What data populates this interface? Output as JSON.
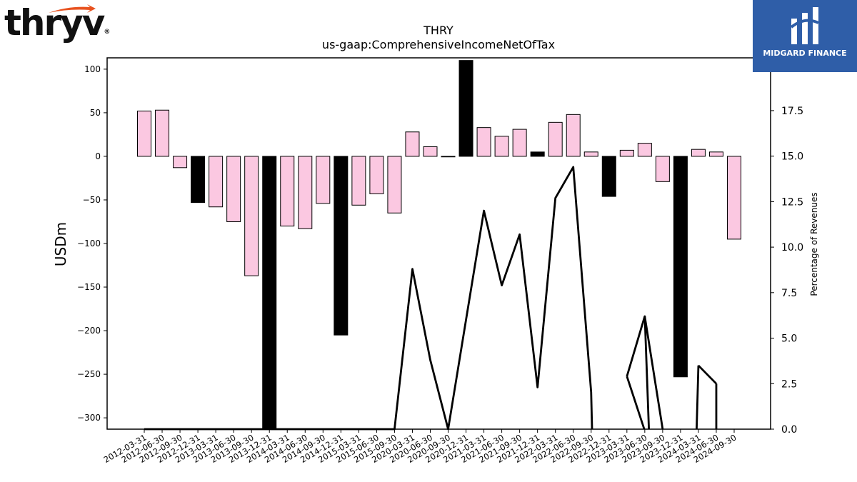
{
  "brand": {
    "left_logo_text": "thryv",
    "left_logo_mark": "®",
    "left_logo_accent_color": "#e8521f",
    "right_logo_text": "MIDGARD FINANCE",
    "right_logo_bg": "#2f5ea8"
  },
  "chart_data": {
    "type": "bar",
    "title": "THRY",
    "subtitle": "us-gaap:ComprehensiveIncomeNetOfTax",
    "ylabel": "USDm",
    "y2label": "Percentage of Revenues",
    "ylim": [
      -313,
      113
    ],
    "y2lim": [
      0,
      20.4
    ],
    "yticks": [
      100,
      50,
      0,
      -50,
      -100,
      -150,
      -200,
      -250,
      -300
    ],
    "ytick_labels": [
      "100",
      "50",
      "0",
      "−50",
      "−100",
      "−150",
      "−200",
      "−250",
      "−300"
    ],
    "y2ticks": [
      0,
      2.5,
      5,
      7.5,
      10,
      12.5,
      15,
      17.5
    ],
    "y2tick_labels": [
      "0.0",
      "2.5",
      "5.0",
      "7.5",
      "10.0",
      "12.5",
      "15.0",
      "17.5"
    ],
    "colors": {
      "quarter": "#fbc8e1",
      "annual": "#000000",
      "line": "#000000"
    },
    "categories": [
      "2012-03-31",
      "2012-06-30",
      "2012-09-30",
      "2012-12-31",
      "2013-03-31",
      "2013-06-30",
      "2013-09-30",
      "2013-12-31",
      "2014-03-31",
      "2014-06-30",
      "2014-09-30",
      "2014-12-31",
      "2015-03-31",
      "2015-06-30",
      "2015-09-30",
      "2020-03-31",
      "2020-06-30",
      "2020-09-30",
      "2020-12-31",
      "2021-03-31",
      "2021-06-30",
      "2021-09-30",
      "2021-12-31",
      "2022-03-31",
      "2022-06-30",
      "2022-09-30",
      "2022-12-31",
      "2023-03-31",
      "2023-06-30",
      "2023-09-30",
      "2023-12-31",
      "2024-03-31",
      "2024-06-30",
      "2024-09-30"
    ],
    "series": [
      {
        "kind": "bar",
        "values": [
          52,
          53,
          -13,
          -53,
          -58,
          -75,
          -137,
          -313,
          -80,
          -83,
          -54,
          -205,
          -56,
          -43,
          -65,
          28,
          11,
          0,
          110,
          33,
          23,
          31,
          5,
          39,
          48,
          5,
          -46,
          7,
          15,
          -29,
          -253,
          8,
          5,
          -95
        ],
        "annual": [
          false,
          false,
          false,
          true,
          false,
          false,
          false,
          true,
          false,
          false,
          false,
          true,
          false,
          false,
          false,
          false,
          false,
          false,
          true,
          false,
          false,
          false,
          true,
          false,
          false,
          false,
          true,
          false,
          false,
          false,
          true,
          false,
          false,
          false
        ]
      },
      {
        "kind": "line",
        "axis": "right",
        "values": [
          0,
          0,
          0,
          0,
          0,
          0,
          0,
          0,
          0,
          0,
          0,
          0,
          0,
          0,
          0,
          8.8,
          3.8,
          0,
          6.0,
          12.0,
          7.9,
          10.7,
          2.3,
          12.7,
          14.4,
          2.0,
          null,
          2.9,
          6.2,
          0,
          null,
          3.5,
          2.5,
          null
        ],
        "segment_breaks": [
          [
            25,
            26,
            25.05,
            0
          ],
          [
            27,
            28,
            27.97,
            0
          ],
          [
            28,
            29,
            28.23,
            0
          ],
          [
            30,
            31,
            30.9,
            0
          ],
          [
            32,
            33,
            32.0,
            0
          ]
        ]
      }
    ]
  }
}
